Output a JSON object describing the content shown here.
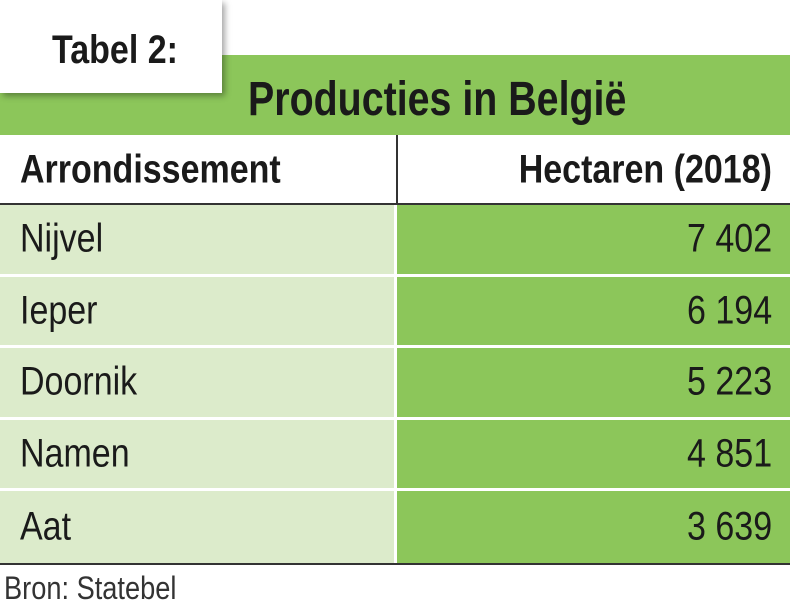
{
  "header": {
    "label": "Tabel 2:",
    "title": "Producties in België"
  },
  "table": {
    "columns": [
      "Arrondissement",
      "Hectaren (2018)"
    ],
    "rows": [
      [
        "Nijvel",
        "7 402"
      ],
      [
        "Ieper",
        "6 194"
      ],
      [
        "Doornik",
        "5 223"
      ],
      [
        "Namen",
        "4 851"
      ],
      [
        "Aat",
        "3 639"
      ]
    ]
  },
  "footer": {
    "source": "Bron: Statebel"
  }
}
